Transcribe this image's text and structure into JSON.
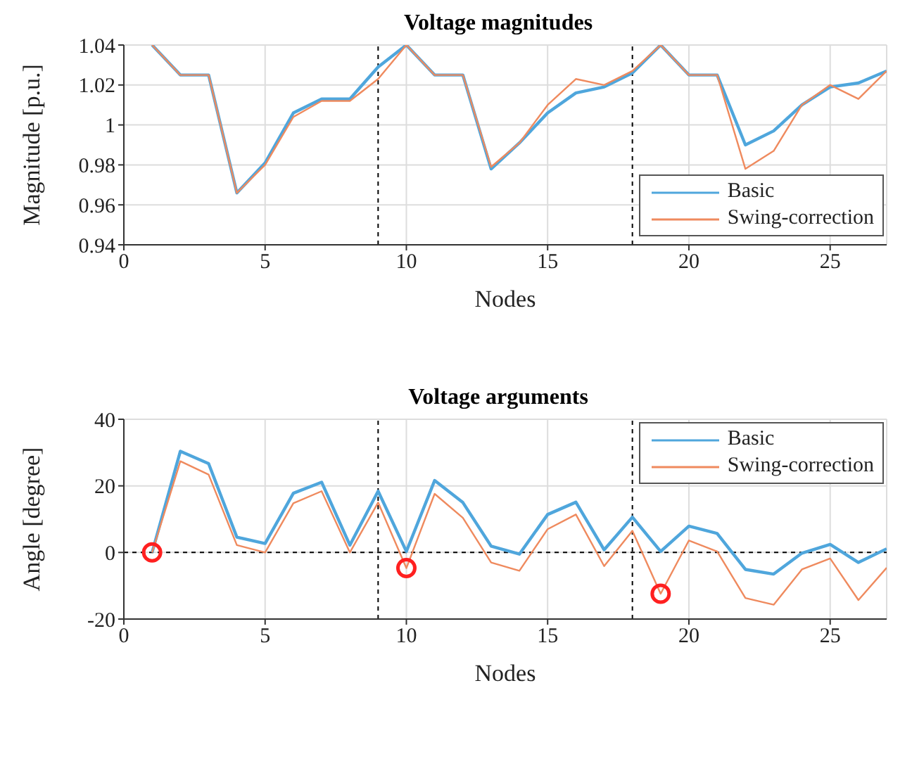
{
  "chart_data": [
    {
      "type": "line",
      "title": "Voltage magnitudes",
      "xlabel": "Nodes",
      "ylabel": "Magnitude [p.u.]",
      "x": [
        1,
        2,
        3,
        4,
        5,
        6,
        7,
        8,
        9,
        10,
        11,
        12,
        13,
        14,
        15,
        16,
        17,
        18,
        19,
        20,
        21,
        22,
        23,
        24,
        25,
        26,
        27
      ],
      "series": [
        {
          "name": "Basic",
          "color": "#4fa6dc",
          "values": [
            1.04,
            1.025,
            1.025,
            0.966,
            0.981,
            1.006,
            1.013,
            1.013,
            1.029,
            1.04,
            1.025,
            1.025,
            0.978,
            0.991,
            1.006,
            1.016,
            1.019,
            1.026,
            1.04,
            1.025,
            1.025,
            0.99,
            0.997,
            1.01,
            1.019,
            1.021,
            1.027
          ]
        },
        {
          "name": "Swing-correction",
          "color": "#ef8a5e",
          "values": [
            1.04,
            1.025,
            1.025,
            0.966,
            0.98,
            1.004,
            1.012,
            1.012,
            1.023,
            1.04,
            1.025,
            1.025,
            0.979,
            0.991,
            1.01,
            1.023,
            1.02,
            1.027,
            1.04,
            1.025,
            1.025,
            0.978,
            0.987,
            1.01,
            1.02,
            1.013,
            1.027
          ]
        }
      ],
      "xlim": [
        0,
        27
      ],
      "xticks": [
        0,
        5,
        10,
        15,
        20,
        25
      ],
      "ylim": [
        0.94,
        1.04
      ],
      "yticks": [
        0.94,
        0.96,
        0.98,
        1,
        1.02,
        1.04
      ],
      "ref_lines": [
        {
          "axis": "x",
          "value": 9,
          "color": "#000000",
          "line_style": "dashed"
        },
        {
          "axis": "x",
          "value": 18,
          "color": "#000000",
          "line_style": "dashed"
        }
      ],
      "grid": true,
      "legend": "bottom right",
      "marker": "none",
      "line_style": "solid"
    },
    {
      "type": "line",
      "title": "Voltage arguments",
      "xlabel": "Nodes",
      "ylabel": "Angle [degree]",
      "x": [
        1,
        2,
        3,
        4,
        5,
        6,
        7,
        8,
        9,
        10,
        11,
        12,
        13,
        14,
        15,
        16,
        17,
        18,
        19,
        20,
        21,
        22,
        23,
        24,
        25,
        26,
        27
      ],
      "series": [
        {
          "name": "Basic",
          "color": "#4fa6dc",
          "values": [
            0,
            30.4,
            26.7,
            4.6,
            2.7,
            17.8,
            21.1,
            2.2,
            18.4,
            0.3,
            21.6,
            15,
            1.9,
            -0.5,
            11.4,
            15.1,
            0.8,
            10.6,
            0.3,
            7.9,
            5.7,
            -5.1,
            -6.5,
            -0.2,
            2.4,
            -3,
            1.1
          ]
        },
        {
          "name": "Swing-correction",
          "color": "#ef8a5e",
          "values": [
            0,
            27.4,
            23.4,
            2.2,
            0,
            14.8,
            18.4,
            0,
            15,
            -4.7,
            17.6,
            10.4,
            -3,
            -5.5,
            7,
            11.4,
            -4.1,
            6.5,
            -12.4,
            3.6,
            0.3,
            -13.7,
            -15.7,
            -5.1,
            -1.8,
            -14.3,
            -4.6
          ]
        },
        {
          "type": "scatter",
          "color": "#ff2020",
          "marker": "circle",
          "x": [
            1,
            10,
            19
          ],
          "values": [
            0,
            -4.7,
            -12.4
          ]
        }
      ],
      "xlim": [
        0,
        27
      ],
      "xticks": [
        0,
        5,
        10,
        15,
        20,
        25
      ],
      "ylim": [
        -20,
        40
      ],
      "yticks": [
        -20,
        0,
        20,
        40
      ],
      "ref_lines": [
        {
          "axis": "x",
          "value": 9,
          "color": "#000000",
          "line_style": "dashed"
        },
        {
          "axis": "x",
          "value": 18,
          "color": "#000000",
          "line_style": "dashed"
        },
        {
          "axis": "y",
          "value": 0,
          "color": "#000000",
          "line_style": "dashed"
        }
      ],
      "grid": true,
      "legend": "top right",
      "marker": "none",
      "line_style": "solid"
    }
  ]
}
